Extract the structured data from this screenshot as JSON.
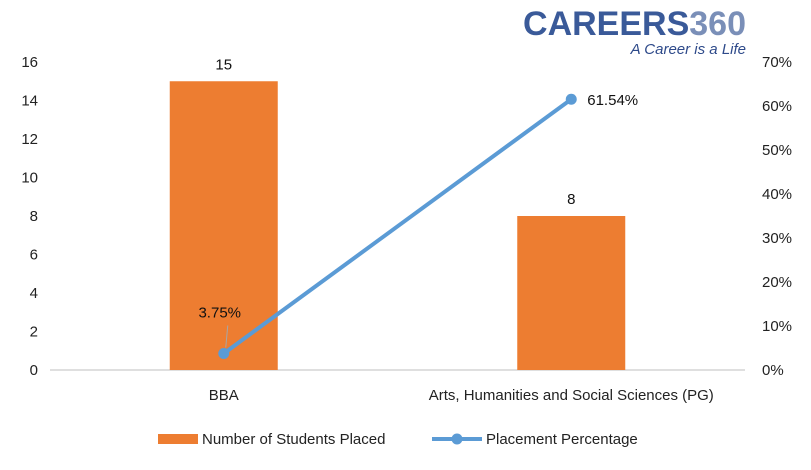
{
  "brand": {
    "name_bold": "CAREERS",
    "name_light": "360",
    "tagline": "A Career is a Life",
    "color_bold": "#3a5a99",
    "color_light": "#7a8fb8"
  },
  "chart_data": {
    "type": "bar",
    "categories": [
      "BBA",
      "Arts, Humanities and Social Sciences (PG)"
    ],
    "series": [
      {
        "name": "Number of Students Placed",
        "type": "bar",
        "axis": "left",
        "values": [
          15,
          8
        ],
        "labels": [
          "15",
          "8"
        ],
        "color": "#ed7d31"
      },
      {
        "name": "Placement Percentage",
        "type": "line",
        "axis": "right",
        "values": [
          3.75,
          61.54
        ],
        "labels": [
          "3.75%",
          "61.54%"
        ],
        "color": "#5b9bd5"
      }
    ],
    "y_left": {
      "min": 0,
      "max": 16,
      "step": 2,
      "ticks": [
        "0",
        "2",
        "4",
        "6",
        "8",
        "10",
        "12",
        "14",
        "16"
      ]
    },
    "y_right": {
      "min": 0,
      "max": 70,
      "step": 10,
      "ticks": [
        "0%",
        "10%",
        "20%",
        "30%",
        "40%",
        "50%",
        "60%",
        "70%"
      ]
    },
    "title": "",
    "xlabel": "",
    "grid": false,
    "legend_position": "bottom"
  }
}
